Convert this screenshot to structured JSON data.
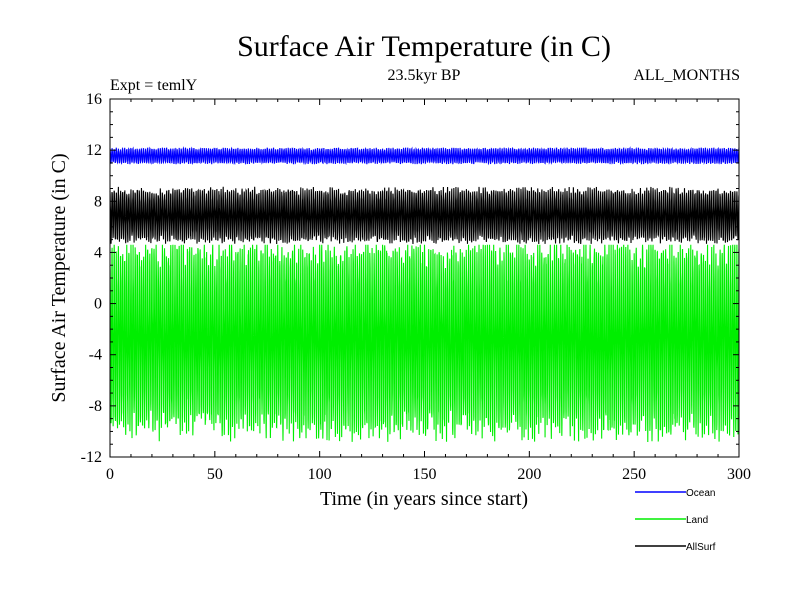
{
  "chart_data": {
    "type": "line",
    "title": "Surface Air Temperature (in C)",
    "subtitle": "23.5kyr BP",
    "experiment_label": "Expt = temlY",
    "months_label": "ALL_MONTHS",
    "xlabel": "Time (in years since start)",
    "ylabel": "Surface Air Temperature (in C)",
    "xlim": [
      0,
      300
    ],
    "ylim": [
      -12,
      16
    ],
    "x_ticks": [
      "0",
      "50",
      "100",
      "150",
      "200",
      "250",
      "300"
    ],
    "y_ticks": [
      "-12",
      "-8",
      "-4",
      "0",
      "4",
      "8",
      "12",
      "16"
    ],
    "grid": false,
    "legend_position": "bottom-right",
    "series": [
      {
        "name": "Ocean",
        "color": "#0000ff",
        "seasonal_min": 11.0,
        "seasonal_max": 12.1,
        "extreme_min": 10.6,
        "extreme_max": 12.5
      },
      {
        "name": "AllSurf",
        "color": "#000000",
        "seasonal_min": 5.0,
        "seasonal_max": 8.8,
        "extreme_min": 4.4,
        "extreme_max": 9.4
      },
      {
        "name": "Land",
        "color": "#00ee00",
        "seasonal_min": -9.6,
        "seasonal_max": 4.0,
        "extreme_min": -10.9,
        "extreme_max": 4.6
      }
    ],
    "legend": [
      {
        "name": "Ocean",
        "color": "#0000ff"
      },
      {
        "name": "Land",
        "color": "#00ee00"
      },
      {
        "name": "AllSurf",
        "color": "#000000"
      }
    ]
  }
}
